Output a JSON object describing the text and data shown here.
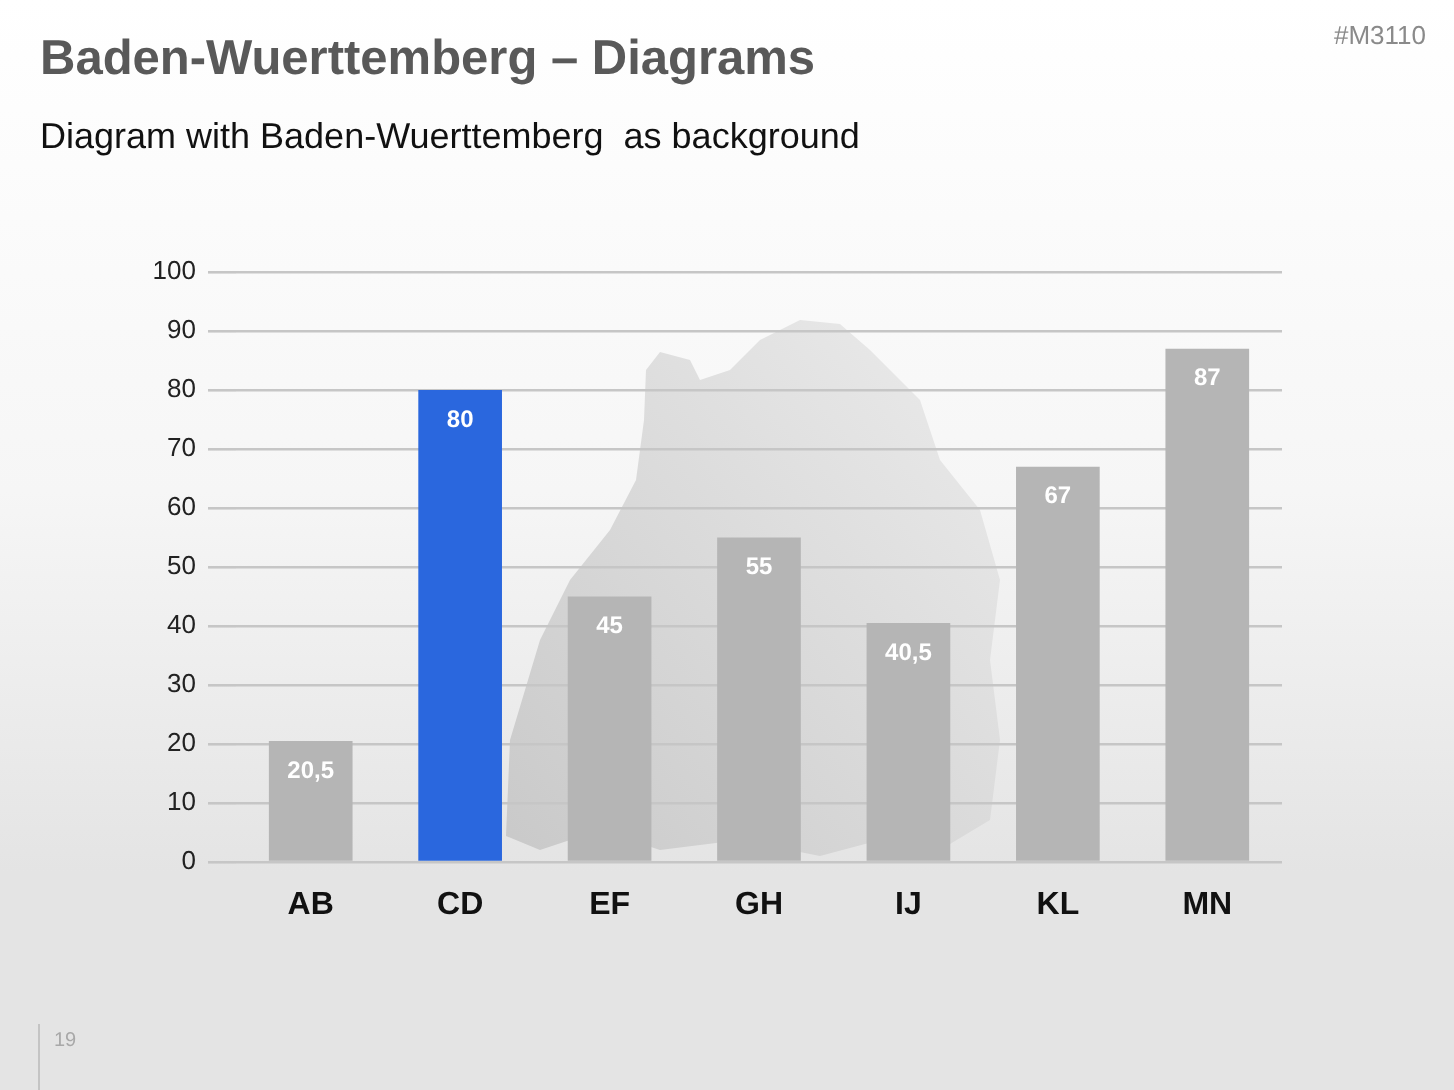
{
  "chart_data": {
    "type": "bar",
    "title": "Baden-Wuerttemberg – Diagrams",
    "subtitle": "Diagram with Baden-Wuerttemberg  as background",
    "categories": [
      "AB",
      "CD",
      "EF",
      "GH",
      "IJ",
      "KL",
      "MN"
    ],
    "values": [
      20.5,
      80,
      45,
      55,
      40.5,
      67,
      87
    ],
    "value_labels": [
      "20,5",
      "80",
      "45",
      "55",
      "40,5",
      "67",
      "87"
    ],
    "colors": [
      "#b5b5b5",
      "#2a67de",
      "#b5b5b5",
      "#b5b5b5",
      "#b5b5b5",
      "#b5b5b5",
      "#b5b5b5"
    ],
    "ylim": [
      0,
      100
    ],
    "yticks": [
      0,
      10,
      20,
      30,
      40,
      50,
      60,
      70,
      80,
      90,
      100
    ],
    "grid": "y",
    "annotations": [
      "#M3110",
      "19"
    ]
  }
}
